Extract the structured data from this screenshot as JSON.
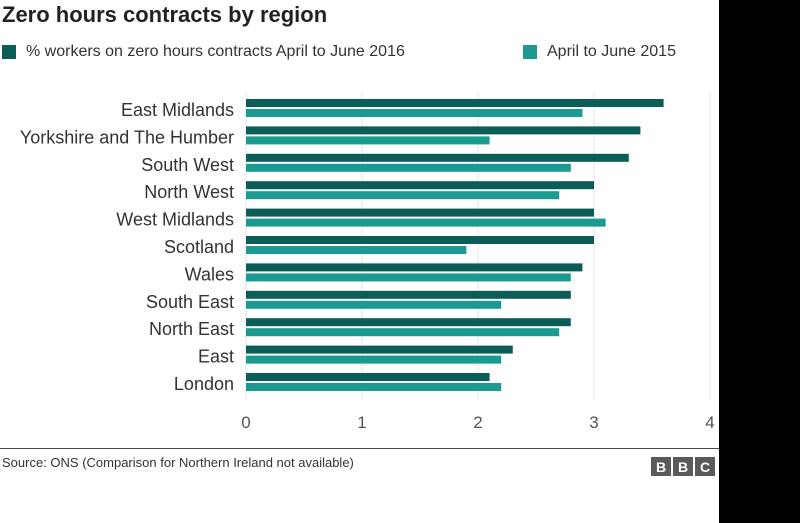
{
  "colors": {
    "series_2016": "#0b5e57",
    "series_2015": "#1a9a90",
    "axis_text": "#555555",
    "gridline": "#e6e6e6",
    "background": "#ffffff"
  },
  "source_text": "Source: ONS (Comparison for Northern Ireland not available)",
  "logo": {
    "letters": [
      "B",
      "B",
      "C"
    ]
  },
  "chart_data": {
    "type": "bar",
    "orientation": "horizontal",
    "title": "Zero hours contracts by region",
    "categories": [
      "East Midlands",
      "Yorkshire and The Humber",
      "South West",
      "North West",
      "West Midlands",
      "Scotland",
      "Wales",
      "South East",
      "North East",
      "East",
      "London"
    ],
    "series": [
      {
        "name": "% workers on zero hours contracts April to June 2016",
        "color": "#0b5e57",
        "values": [
          3.6,
          3.4,
          3.3,
          3.0,
          3.0,
          3.0,
          2.9,
          2.8,
          2.8,
          2.3,
          2.1
        ]
      },
      {
        "name": "April to June 2015",
        "color": "#1a9a90",
        "values": [
          2.9,
          2.1,
          2.8,
          2.7,
          3.1,
          1.9,
          2.8,
          2.2,
          2.7,
          2.2,
          2.2
        ]
      }
    ],
    "xlim": [
      0,
      4
    ],
    "xticks": [
      "0",
      "1",
      "2",
      "3",
      "4"
    ],
    "grid": true,
    "legend_position": "top"
  }
}
